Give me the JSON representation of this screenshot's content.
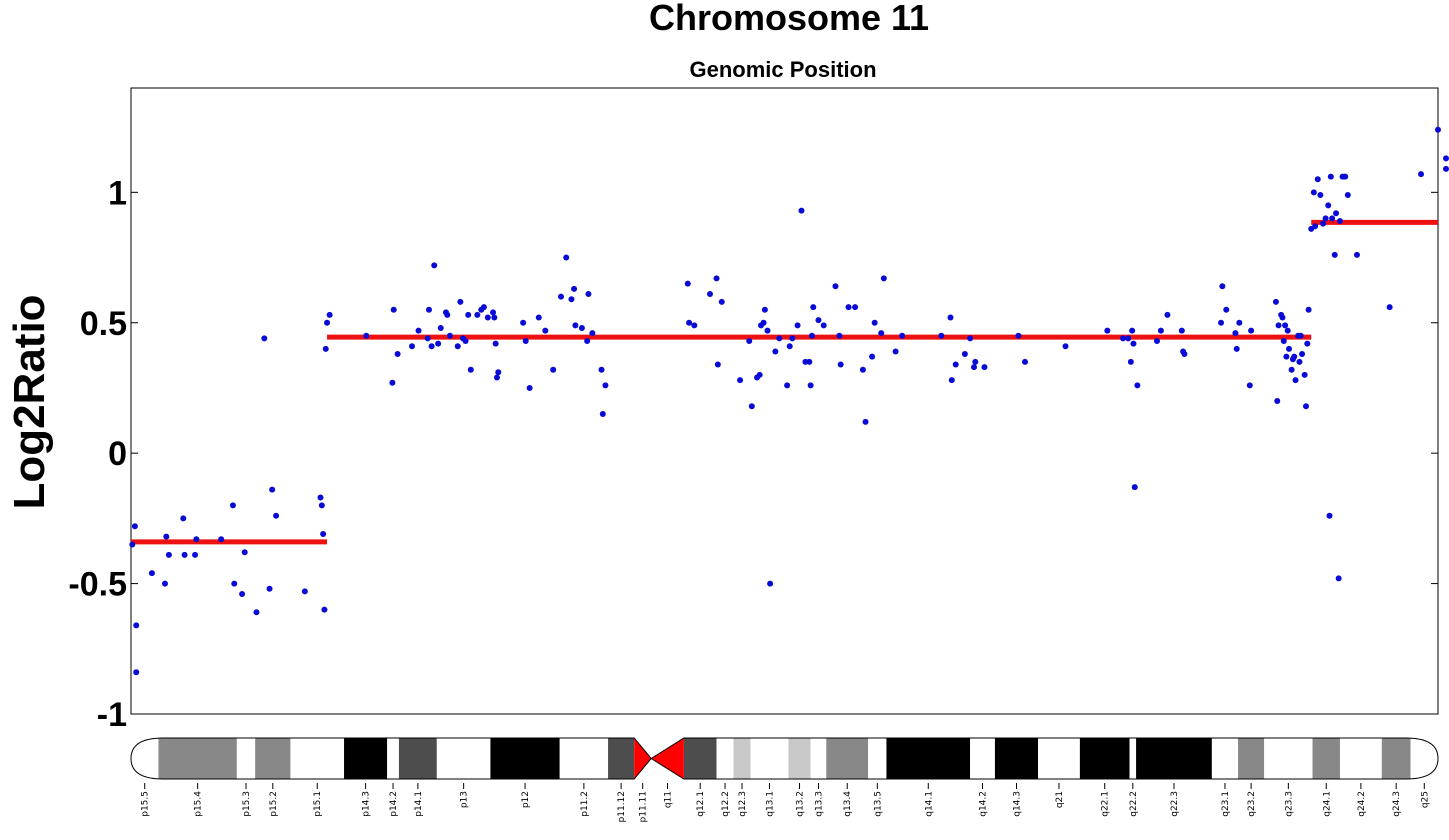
{
  "chart_data": {
    "type": "scatter",
    "title": "Chromosome 11",
    "subtitle": "Genomic Position",
    "xlabel": "",
    "ylabel": "Log2Ratio",
    "xlim": [
      0,
      1
    ],
    "ylim": [
      -1,
      1.4
    ],
    "yticks": [
      1,
      0.5,
      0,
      -0.5,
      -1
    ],
    "ytick_labels": [
      "1",
      "0.5",
      "0",
      "-0.5",
      "-1"
    ],
    "grid": false,
    "legend": "none",
    "colors": {
      "points": "#0a0ad6",
      "segments": "#ee1111",
      "centromere": "#ff0000"
    },
    "segments": [
      {
        "x_start": 0.0,
        "x_end": 0.15,
        "value": -0.34
      },
      {
        "x_start": 0.15,
        "x_end": 0.903,
        "value": 0.445
      },
      {
        "x_start": 0.903,
        "x_end": 1.0,
        "value": 0.885
      }
    ],
    "points": [
      [
        0.001,
        -0.35
      ],
      [
        0.003,
        -0.28
      ],
      [
        0.004,
        -0.66
      ],
      [
        0.004,
        -0.84
      ],
      [
        0.016,
        -0.46
      ],
      [
        0.026,
        -0.5
      ],
      [
        0.027,
        -0.32
      ],
      [
        0.029,
        -0.39
      ],
      [
        0.04,
        -0.25
      ],
      [
        0.041,
        -0.39
      ],
      [
        0.049,
        -0.39
      ],
      [
        0.05,
        -0.33
      ],
      [
        0.069,
        -0.33
      ],
      [
        0.078,
        -0.2
      ],
      [
        0.079,
        -0.5
      ],
      [
        0.085,
        -0.54
      ],
      [
        0.087,
        -0.38
      ],
      [
        0.096,
        -0.61
      ],
      [
        0.102,
        0.44
      ],
      [
        0.106,
        -0.52
      ],
      [
        0.108,
        -0.14
      ],
      [
        0.111,
        -0.24
      ],
      [
        0.133,
        -0.53
      ],
      [
        0.145,
        -0.17
      ],
      [
        0.146,
        -0.2
      ],
      [
        0.147,
        -0.31
      ],
      [
        0.148,
        -0.6
      ],
      [
        0.149,
        0.4
      ],
      [
        0.15,
        0.5
      ],
      [
        0.152,
        0.53
      ],
      [
        0.18,
        0.45
      ],
      [
        0.2,
        0.27
      ],
      [
        0.201,
        0.55
      ],
      [
        0.204,
        0.38
      ],
      [
        0.215,
        0.41
      ],
      [
        0.22,
        0.47
      ],
      [
        0.227,
        0.44
      ],
      [
        0.228,
        0.55
      ],
      [
        0.23,
        0.41
      ],
      [
        0.232,
        0.72
      ],
      [
        0.235,
        0.42
      ],
      [
        0.237,
        0.48
      ],
      [
        0.241,
        0.54
      ],
      [
        0.242,
        0.53
      ],
      [
        0.244,
        0.45
      ],
      [
        0.25,
        0.41
      ],
      [
        0.252,
        0.58
      ],
      [
        0.254,
        0.44
      ],
      [
        0.256,
        0.43
      ],
      [
        0.258,
        0.53
      ],
      [
        0.26,
        0.32
      ],
      [
        0.265,
        0.53
      ],
      [
        0.268,
        0.55
      ],
      [
        0.27,
        0.56
      ],
      [
        0.273,
        0.52
      ],
      [
        0.277,
        0.54
      ],
      [
        0.278,
        0.52
      ],
      [
        0.279,
        0.42
      ],
      [
        0.28,
        0.29
      ],
      [
        0.281,
        0.31
      ],
      [
        0.3,
        0.5
      ],
      [
        0.302,
        0.43
      ],
      [
        0.305,
        0.25
      ],
      [
        0.312,
        0.52
      ],
      [
        0.317,
        0.47
      ],
      [
        0.323,
        0.32
      ],
      [
        0.329,
        0.6
      ],
      [
        0.333,
        0.75
      ],
      [
        0.337,
        0.59
      ],
      [
        0.339,
        0.63
      ],
      [
        0.34,
        0.49
      ],
      [
        0.345,
        0.48
      ],
      [
        0.349,
        0.43
      ],
      [
        0.35,
        0.61
      ],
      [
        0.353,
        0.46
      ],
      [
        0.36,
        0.32
      ],
      [
        0.361,
        0.15
      ],
      [
        0.363,
        0.26
      ],
      [
        0.426,
        0.65
      ],
      [
        0.427,
        0.5
      ],
      [
        0.431,
        0.49
      ],
      [
        0.443,
        0.61
      ],
      [
        0.448,
        0.67
      ],
      [
        0.449,
        0.34
      ],
      [
        0.452,
        0.58
      ],
      [
        0.466,
        0.28
      ],
      [
        0.473,
        0.43
      ],
      [
        0.475,
        0.18
      ],
      [
        0.479,
        0.29
      ],
      [
        0.481,
        0.3
      ],
      [
        0.482,
        0.49
      ],
      [
        0.484,
        0.5
      ],
      [
        0.485,
        0.55
      ],
      [
        0.487,
        0.47
      ],
      [
        0.489,
        -0.5
      ],
      [
        0.493,
        0.39
      ],
      [
        0.496,
        0.44
      ],
      [
        0.502,
        0.26
      ],
      [
        0.504,
        0.41
      ],
      [
        0.506,
        0.44
      ],
      [
        0.51,
        0.49
      ],
      [
        0.513,
        0.93
      ],
      [
        0.516,
        0.35
      ],
      [
        0.519,
        0.35
      ],
      [
        0.52,
        0.26
      ],
      [
        0.521,
        0.45
      ],
      [
        0.522,
        0.56
      ],
      [
        0.526,
        0.51
      ],
      [
        0.53,
        0.49
      ],
      [
        0.539,
        0.64
      ],
      [
        0.542,
        0.45
      ],
      [
        0.543,
        0.34
      ],
      [
        0.549,
        0.56
      ],
      [
        0.554,
        0.56
      ],
      [
        0.56,
        0.32
      ],
      [
        0.562,
        0.12
      ],
      [
        0.567,
        0.37
      ],
      [
        0.569,
        0.5
      ],
      [
        0.574,
        0.46
      ],
      [
        0.576,
        0.67
      ],
      [
        0.585,
        0.39
      ],
      [
        0.59,
        0.45
      ],
      [
        0.62,
        0.45
      ],
      [
        0.627,
        0.52
      ],
      [
        0.628,
        0.28
      ],
      [
        0.631,
        0.34
      ],
      [
        0.638,
        0.38
      ],
      [
        0.642,
        0.44
      ],
      [
        0.645,
        0.33
      ],
      [
        0.646,
        0.35
      ],
      [
        0.653,
        0.33
      ],
      [
        0.679,
        0.45
      ],
      [
        0.684,
        0.35
      ],
      [
        0.715,
        0.41
      ],
      [
        0.747,
        0.47
      ],
      [
        0.759,
        0.44
      ],
      [
        0.763,
        0.44
      ],
      [
        0.765,
        0.35
      ],
      [
        0.766,
        0.47
      ],
      [
        0.767,
        0.42
      ],
      [
        0.768,
        -0.13
      ],
      [
        0.77,
        0.26
      ],
      [
        0.785,
        0.43
      ],
      [
        0.788,
        0.47
      ],
      [
        0.793,
        0.53
      ],
      [
        0.804,
        0.47
      ],
      [
        0.805,
        0.39
      ],
      [
        0.806,
        0.38
      ],
      [
        0.834,
        0.5
      ],
      [
        0.835,
        0.64
      ],
      [
        0.838,
        0.55
      ],
      [
        0.845,
        0.46
      ],
      [
        0.846,
        0.4
      ],
      [
        0.848,
        0.5
      ],
      [
        0.856,
        0.26
      ],
      [
        0.857,
        0.47
      ],
      [
        0.876,
        0.58
      ],
      [
        0.877,
        0.2
      ],
      [
        0.878,
        0.49
      ],
      [
        0.88,
        0.53
      ],
      [
        0.881,
        0.52
      ],
      [
        0.882,
        0.43
      ],
      [
        0.883,
        0.49
      ],
      [
        0.884,
        0.37
      ],
      [
        0.885,
        0.47
      ],
      [
        0.886,
        0.4
      ],
      [
        0.888,
        0.32
      ],
      [
        0.889,
        0.36
      ],
      [
        0.89,
        0.37
      ],
      [
        0.891,
        0.28
      ],
      [
        0.893,
        0.45
      ],
      [
        0.894,
        0.35
      ],
      [
        0.895,
        0.45
      ],
      [
        0.896,
        0.38
      ],
      [
        0.898,
        0.3
      ],
      [
        0.899,
        0.18
      ],
      [
        0.9,
        0.42
      ],
      [
        0.901,
        0.55
      ],
      [
        0.903,
        0.86
      ],
      [
        0.905,
        1.0
      ],
      [
        0.906,
        0.87
      ],
      [
        0.908,
        1.05
      ],
      [
        0.91,
        0.99
      ],
      [
        0.912,
        0.88
      ],
      [
        0.914,
        0.9
      ],
      [
        0.916,
        0.95
      ],
      [
        0.917,
        -0.24
      ],
      [
        0.918,
        1.06
      ],
      [
        0.919,
        0.9
      ],
      [
        0.921,
        0.76
      ],
      [
        0.922,
        0.92
      ],
      [
        0.924,
        -0.48
      ],
      [
        0.925,
        0.89
      ],
      [
        0.927,
        1.06
      ],
      [
        0.929,
        1.06
      ],
      [
        0.931,
        0.99
      ],
      [
        0.938,
        0.76
      ],
      [
        0.963,
        0.56
      ],
      [
        0.987,
        1.07
      ],
      [
        1.0,
        1.24
      ],
      [
        1.012,
        1.13
      ],
      [
        1.018,
        1.09
      ]
    ],
    "ideogram": {
      "bands": [
        {
          "name": "p15.5",
          "x_start": 0.0,
          "x_end": 0.021,
          "stain": "gneg"
        },
        {
          "name": "p15.4",
          "x_start": 0.021,
          "x_end": 0.081,
          "stain": "gpos50"
        },
        {
          "name": "p15.3",
          "x_start": 0.081,
          "x_end": 0.095,
          "stain": "gneg"
        },
        {
          "name": "p15.2",
          "x_start": 0.095,
          "x_end": 0.122,
          "stain": "gpos50"
        },
        {
          "name": "p15.1",
          "x_start": 0.122,
          "x_end": 0.163,
          "stain": "gneg"
        },
        {
          "name": "p14.3",
          "x_start": 0.163,
          "x_end": 0.196,
          "stain": "gpos100"
        },
        {
          "name": "p14.2",
          "x_start": 0.196,
          "x_end": 0.205,
          "stain": "gneg"
        },
        {
          "name": "p14.1",
          "x_start": 0.205,
          "x_end": 0.234,
          "stain": "gpos75"
        },
        {
          "name": "p13",
          "x_start": 0.234,
          "x_end": 0.275,
          "stain": "gneg"
        },
        {
          "name": "p12",
          "x_start": 0.275,
          "x_end": 0.328,
          "stain": "gpos100"
        },
        {
          "name": "p11.2",
          "x_start": 0.328,
          "x_end": 0.365,
          "stain": "gneg"
        },
        {
          "name": "p11.12",
          "x_start": 0.365,
          "x_end": 0.385,
          "stain": "gpos75"
        },
        {
          "name": "p11.11",
          "x_start": 0.385,
          "x_end": 0.398,
          "stain": "acen"
        },
        {
          "name": "q11",
          "x_start": 0.398,
          "x_end": 0.423,
          "stain": "acen"
        },
        {
          "name": "q12.1",
          "x_start": 0.423,
          "x_end": 0.448,
          "stain": "gpos75"
        },
        {
          "name": "q12.2",
          "x_start": 0.448,
          "x_end": 0.461,
          "stain": "gneg"
        },
        {
          "name": "q12.3",
          "x_start": 0.461,
          "x_end": 0.474,
          "stain": "gpos25"
        },
        {
          "name": "q13.1",
          "x_start": 0.474,
          "x_end": 0.503,
          "stain": "gneg"
        },
        {
          "name": "q13.2",
          "x_start": 0.503,
          "x_end": 0.52,
          "stain": "gpos25"
        },
        {
          "name": "q13.3",
          "x_start": 0.52,
          "x_end": 0.532,
          "stain": "gneg"
        },
        {
          "name": "q13.4",
          "x_start": 0.532,
          "x_end": 0.564,
          "stain": "gpos50"
        },
        {
          "name": "q13.5",
          "x_start": 0.564,
          "x_end": 0.578,
          "stain": "gneg"
        },
        {
          "name": "q14.1",
          "x_start": 0.578,
          "x_end": 0.642,
          "stain": "gpos100"
        },
        {
          "name": "q14.2",
          "x_start": 0.642,
          "x_end": 0.661,
          "stain": "gneg"
        },
        {
          "name": "q14.3",
          "x_start": 0.661,
          "x_end": 0.694,
          "stain": "gpos100"
        },
        {
          "name": "q21",
          "x_start": 0.694,
          "x_end": 0.726,
          "stain": "gneg"
        },
        {
          "name": "q22.1",
          "x_start": 0.726,
          "x_end": 0.764,
          "stain": "gpos100"
        },
        {
          "name": "q22.2",
          "x_start": 0.764,
          "x_end": 0.769,
          "stain": "gneg"
        },
        {
          "name": "q22.3",
          "x_start": 0.769,
          "x_end": 0.827,
          "stain": "gpos100"
        },
        {
          "name": "q23.1",
          "x_start": 0.827,
          "x_end": 0.847,
          "stain": "gneg"
        },
        {
          "name": "q23.2",
          "x_start": 0.847,
          "x_end": 0.867,
          "stain": "gpos50"
        },
        {
          "name": "q23.3",
          "x_start": 0.867,
          "x_end": 0.904,
          "stain": "gneg"
        },
        {
          "name": "q24.1",
          "x_start": 0.904,
          "x_end": 0.925,
          "stain": "gpos50"
        },
        {
          "name": "q24.2",
          "x_start": 0.925,
          "x_end": 0.957,
          "stain": "gneg"
        },
        {
          "name": "q24.3",
          "x_start": 0.957,
          "x_end": 0.979,
          "stain": "gpos50"
        },
        {
          "name": "q25",
          "x_start": 0.979,
          "x_end": 1.0,
          "stain": "gneg"
        }
      ],
      "stain_colors": {
        "gneg": "#ffffff",
        "gpos25": "#c8c8c8",
        "gpos50": "#888888",
        "gpos75": "#4d4d4d",
        "gpos100": "#000000",
        "acen": "#ff0000"
      }
    }
  }
}
